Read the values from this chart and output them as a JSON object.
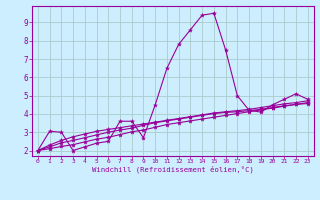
{
  "xlabel": "Windchill (Refroidissement éolien,°C)",
  "background_color": "#cceeff",
  "line_color": "#990099",
  "grid_color": "#aacccc",
  "x_ticks": [
    0,
    1,
    2,
    3,
    4,
    5,
    6,
    7,
    8,
    9,
    10,
    11,
    12,
    13,
    14,
    15,
    16,
    17,
    18,
    19,
    20,
    21,
    22,
    23
  ],
  "x_labels": [
    "0",
    "1",
    "2",
    "3",
    "4",
    "5",
    "6",
    "7",
    "8",
    "9",
    "10",
    "11",
    "12",
    "13",
    "14",
    "15",
    "16",
    "17",
    "18",
    "19",
    "20",
    "21",
    "22",
    "23"
  ],
  "y_ticks": [
    2,
    3,
    4,
    5,
    6,
    7,
    8,
    9
  ],
  "ylim": [
    1.7,
    9.9
  ],
  "xlim": [
    -0.5,
    23.5
  ],
  "series": [
    {
      "x": [
        0,
        1,
        2,
        3,
        4,
        5,
        6,
        7,
        8,
        9,
        10,
        11,
        12,
        13,
        14,
        15,
        16,
        17,
        18,
        19,
        20,
        21,
        22,
        23
      ],
      "y": [
        2.0,
        3.05,
        3.0,
        2.0,
        2.2,
        2.4,
        2.5,
        3.6,
        3.6,
        2.7,
        4.5,
        6.5,
        7.8,
        8.6,
        9.4,
        9.5,
        7.5,
        5.0,
        4.2,
        4.1,
        4.5,
        4.8,
        5.1,
        4.8
      ]
    },
    {
      "x": [
        0,
        1,
        2,
        3,
        4,
        5,
        6,
        7,
        8,
        9,
        10,
        11,
        12,
        13,
        14,
        15,
        16,
        17,
        18,
        19,
        20,
        21,
        22,
        23
      ],
      "y": [
        2.0,
        2.3,
        2.55,
        2.75,
        2.9,
        3.05,
        3.15,
        3.25,
        3.35,
        3.45,
        3.55,
        3.65,
        3.75,
        3.85,
        3.95,
        4.05,
        4.12,
        4.18,
        4.25,
        4.35,
        4.45,
        4.55,
        4.62,
        4.72
      ]
    },
    {
      "x": [
        0,
        1,
        2,
        3,
        4,
        5,
        6,
        7,
        8,
        9,
        10,
        11,
        12,
        13,
        14,
        15,
        16,
        17,
        18,
        19,
        20,
        21,
        22,
        23
      ],
      "y": [
        2.0,
        2.2,
        2.42,
        2.55,
        2.7,
        2.85,
        3.0,
        3.12,
        3.22,
        3.38,
        3.52,
        3.62,
        3.72,
        3.82,
        3.92,
        4.02,
        4.08,
        4.12,
        4.18,
        4.25,
        4.35,
        4.45,
        4.52,
        4.62
      ]
    },
    {
      "x": [
        0,
        1,
        2,
        3,
        4,
        5,
        6,
        7,
        8,
        9,
        10,
        11,
        12,
        13,
        14,
        15,
        16,
        17,
        18,
        19,
        20,
        21,
        22,
        23
      ],
      "y": [
        2.0,
        2.1,
        2.22,
        2.32,
        2.47,
        2.62,
        2.72,
        2.87,
        3.02,
        3.12,
        3.27,
        3.42,
        3.52,
        3.62,
        3.72,
        3.82,
        3.92,
        4.02,
        4.12,
        4.22,
        4.32,
        4.42,
        4.52,
        4.57
      ]
    }
  ]
}
